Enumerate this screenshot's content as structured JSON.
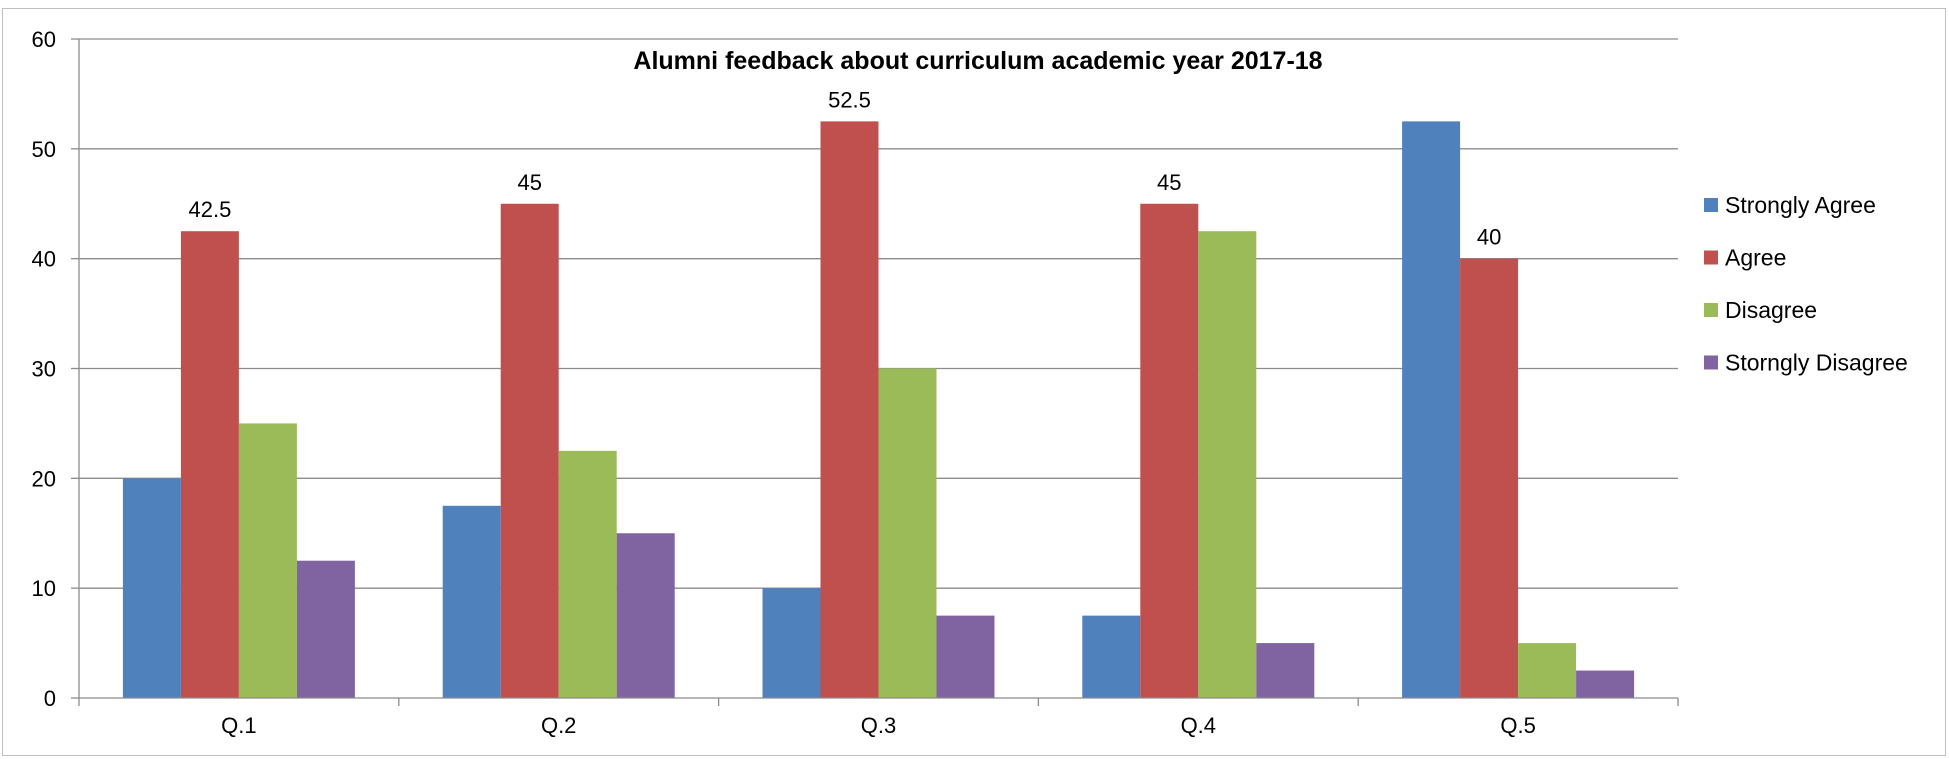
{
  "chart_data": {
    "type": "bar",
    "title": "Alumni feedback about curriculum academic year 2017-18",
    "xlabel": "",
    "ylabel": "",
    "categories": [
      "Q.1",
      "Q.2",
      "Q.3",
      "Q.4",
      "Q.5"
    ],
    "ylim": [
      0,
      60
    ],
    "yticks": [
      0,
      10,
      20,
      30,
      40,
      50,
      60
    ],
    "grid": true,
    "legend_position": "right",
    "series": [
      {
        "name": "Strongly Agree",
        "color": "#4F81BD",
        "values": [
          20,
          17.5,
          10,
          7.5,
          52.5
        ]
      },
      {
        "name": "Agree",
        "color": "#C0504D",
        "values": [
          42.5,
          45,
          52.5,
          45,
          40
        ]
      },
      {
        "name": "Disagree",
        "color": "#9BBB59",
        "values": [
          25,
          22.5,
          30,
          42.5,
          5
        ]
      },
      {
        "name": "Storngly Disagree",
        "color": "#8064A2",
        "values": [
          12.5,
          15,
          7.5,
          5,
          2.5
        ]
      }
    ],
    "data_labels": [
      {
        "series": "Agree",
        "category": "Q.1",
        "text": "42.5"
      },
      {
        "series": "Agree",
        "category": "Q.2",
        "text": "45"
      },
      {
        "series": "Agree",
        "category": "Q.3",
        "text": "52.5"
      },
      {
        "series": "Agree",
        "category": "Q.4",
        "text": "45"
      },
      {
        "series": "Agree",
        "category": "Q.5",
        "text": "40"
      }
    ]
  }
}
